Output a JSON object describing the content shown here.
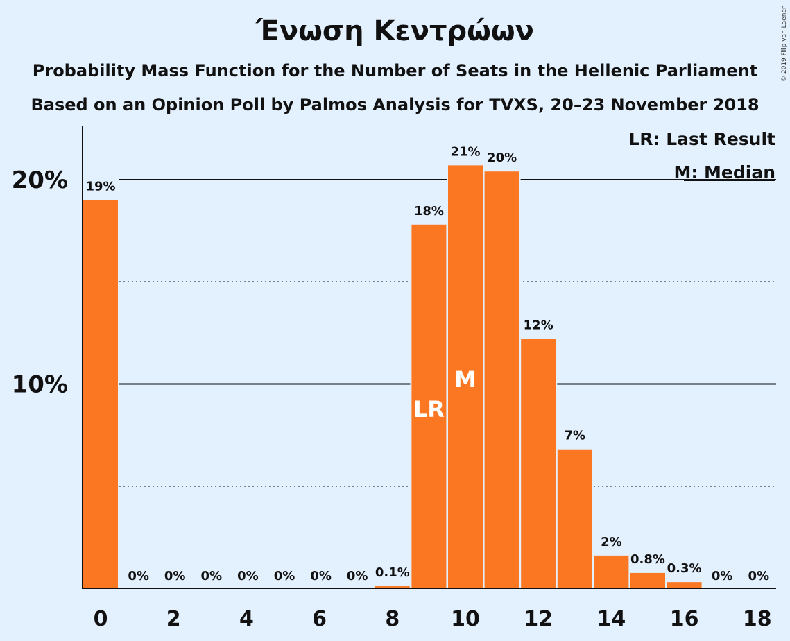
{
  "title": "Ένωση Κεντρώων",
  "subtitle1": "Probability Mass Function for the Number of Seats in the Hellenic Parliament",
  "subtitle2": "Based on an Opinion Poll by Palmos Analysis for TVXS, 20–23 November 2018",
  "copyright": "© 2019 Filip van Laenen",
  "legend": {
    "last_result": "LR: Last Result",
    "median": "M: Median"
  },
  "colors": {
    "background": "#e3f0fd",
    "bar": "#fc7721",
    "axis": "#111111"
  },
  "chart_data": {
    "type": "bar",
    "x": [
      0,
      1,
      2,
      3,
      4,
      5,
      6,
      7,
      8,
      9,
      10,
      11,
      12,
      13,
      14,
      15,
      16,
      17,
      18
    ],
    "values": [
      19.0,
      0,
      0,
      0,
      0,
      0,
      0,
      0,
      0.1,
      17.8,
      20.7,
      20.4,
      12.2,
      6.8,
      1.6,
      0.75,
      0.3,
      0,
      0
    ],
    "labels": [
      "19%",
      "0%",
      "0%",
      "0%",
      "0%",
      "0%",
      "0%",
      "0%",
      "0.1%",
      "18%",
      "21%",
      "20%",
      "12%",
      "7%",
      "2%",
      "0.8%",
      "0.3%",
      "0%",
      "0%"
    ],
    "x_tick_labels": [
      "0",
      "2",
      "4",
      "6",
      "8",
      "10",
      "12",
      "14",
      "16",
      "18"
    ],
    "y_tick_labels": [
      "10%",
      "20%"
    ],
    "ylim": [
      0,
      22.5
    ],
    "solid_gridlines": [
      10,
      20
    ],
    "dotted_gridlines": [
      5,
      15
    ],
    "last_result": {
      "x": 9,
      "label": "LR"
    },
    "median": {
      "x": 10,
      "label": "M"
    },
    "legend_position": "top-right"
  }
}
